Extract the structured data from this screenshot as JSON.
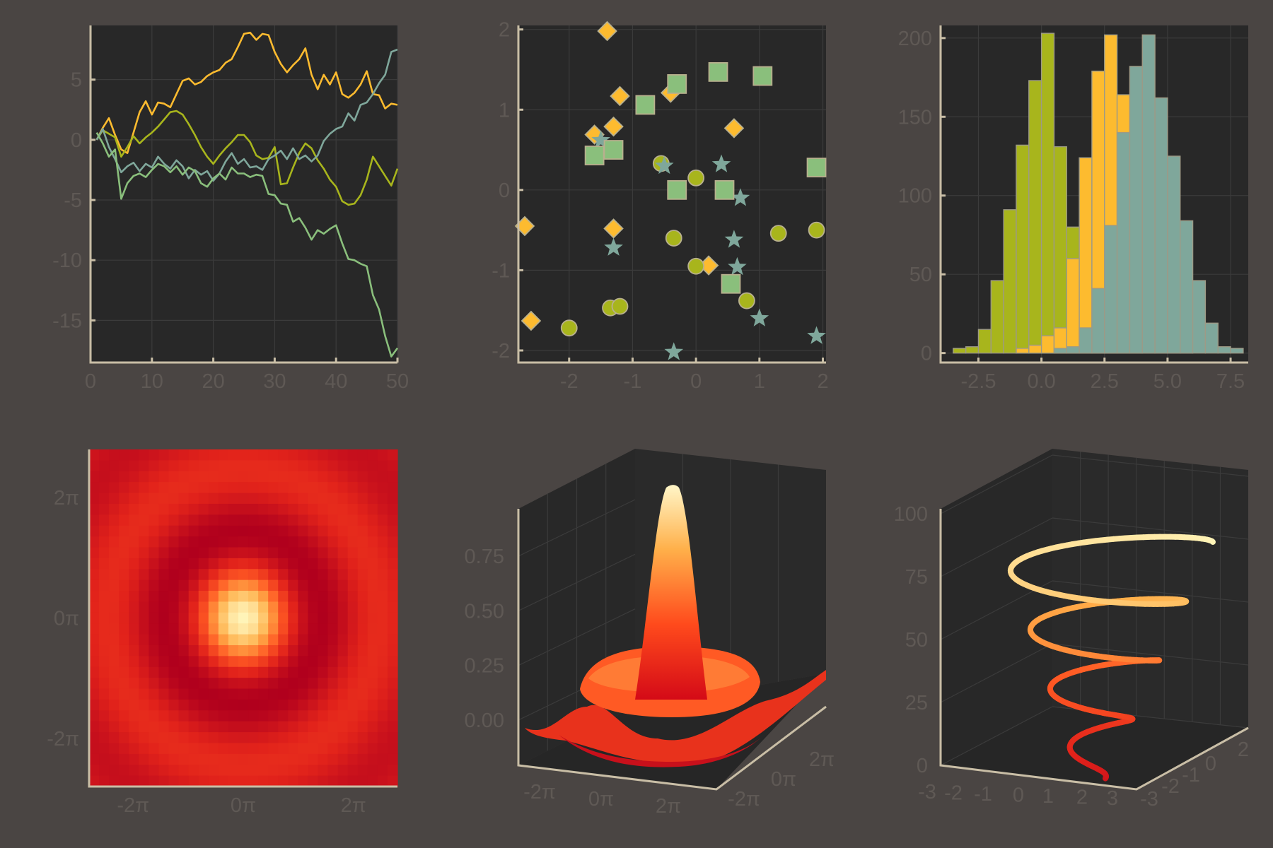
{
  "colors": {
    "background": "#4a4543",
    "plot_area": "#282828",
    "axis": "#c9bea6",
    "tick_text": "#5f5955",
    "palette": [
      "#fdbb2f",
      "#a8b51c",
      "#7fa79b",
      "#8abf7c"
    ],
    "heat": [
      "#b0001d",
      "#e2231b",
      "#ff5a24",
      "#ffb04a",
      "#fff4b8"
    ]
  },
  "chart_data": [
    {
      "id": "lines",
      "type": "line",
      "xlim": [
        0,
        50
      ],
      "ylim": [
        -18.5,
        9.5
      ],
      "x_ticks": [
        {
          "v": 0,
          "label": "0"
        },
        {
          "v": 10,
          "label": "10"
        },
        {
          "v": 20,
          "label": "20"
        },
        {
          "v": 30,
          "label": "30"
        },
        {
          "v": 40,
          "label": "40"
        },
        {
          "v": 50,
          "label": "50"
        }
      ],
      "y_ticks": [
        {
          "v": 5,
          "label": "5"
        },
        {
          "v": 0,
          "label": "0"
        },
        {
          "v": -5,
          "label": "-5"
        },
        {
          "v": -10,
          "label": "-10"
        },
        {
          "v": -15,
          "label": "-15"
        }
      ],
      "x": [
        1,
        2,
        3,
        4,
        5,
        6,
        7,
        8,
        9,
        10,
        11,
        12,
        13,
        14,
        15,
        16,
        17,
        18,
        19,
        20,
        21,
        22,
        23,
        24,
        25,
        26,
        27,
        28,
        29,
        30,
        31,
        32,
        33,
        34,
        35,
        36,
        37,
        38,
        39,
        40,
        41,
        42,
        43,
        44,
        45,
        46,
        47,
        48,
        49,
        50
      ],
      "series": [
        {
          "color": "#fdbb2f",
          "values": [
            0.0,
            1.0,
            1.8,
            0.4,
            -0.8,
            -1.1,
            0.6,
            2.3,
            3.2,
            2.1,
            3.1,
            3.0,
            2.7,
            3.8,
            4.9,
            5.1,
            4.6,
            4.8,
            5.3,
            5.6,
            5.8,
            6.4,
            6.7,
            7.7,
            8.8,
            8.9,
            8.3,
            8.8,
            8.7,
            7.3,
            6.3,
            5.6,
            6.2,
            6.7,
            7.6,
            5.4,
            4.2,
            5.4,
            4.6,
            5.6,
            3.8,
            3.5,
            3.9,
            4.6,
            5.7,
            3.8,
            3.7,
            2.6,
            3.0,
            2.9
          ]
        },
        {
          "color": "#a8b51c",
          "values": [
            0.0,
            0.8,
            0.5,
            0.2,
            -1.4,
            -0.6,
            0.3,
            -0.3,
            0.2,
            0.6,
            1.1,
            1.7,
            2.3,
            2.4,
            2.1,
            1.3,
            0.4,
            -0.6,
            -1.4,
            -2.0,
            -1.3,
            -0.7,
            -0.2,
            0.4,
            0.4,
            -0.2,
            -1.3,
            -1.6,
            -1.5,
            -0.6,
            -3.7,
            -3.6,
            -2.3,
            -1.1,
            -0.3,
            -0.7,
            -1.7,
            -2.4,
            -3.3,
            -3.9,
            -5.1,
            -5.4,
            -5.3,
            -4.6,
            -3.3,
            -1.4,
            -2.2,
            -3.0,
            -3.8,
            -2.4
          ]
        },
        {
          "color": "#7fa79b",
          "values": [
            0.0,
            0.9,
            -0.6,
            -1.6,
            -2.7,
            -2.2,
            -1.9,
            -2.6,
            -2.0,
            -2.3,
            -1.4,
            -2.0,
            -2.4,
            -1.7,
            -2.2,
            -3.2,
            -2.5,
            -2.9,
            -2.6,
            -3.4,
            -2.8,
            -1.8,
            -1.1,
            -2.0,
            -1.6,
            -2.3,
            -2.2,
            -2.5,
            -1.6,
            -1.3,
            -0.9,
            -1.6,
            -0.7,
            -1.6,
            -1.3,
            -1.8,
            -1.3,
            -0.1,
            0.5,
            0.9,
            1.1,
            2.2,
            1.6,
            2.9,
            3.1,
            3.8,
            4.7,
            5.4,
            7.3,
            7.5
          ]
        },
        {
          "color": "#8abf7c",
          "values": [
            0.6,
            -0.3,
            -1.4,
            -0.8,
            -4.9,
            -3.6,
            -3.0,
            -2.8,
            -3.1,
            -2.5,
            -2.0,
            -2.2,
            -2.7,
            -2.2,
            -2.9,
            -2.3,
            -2.6,
            -3.6,
            -3.9,
            -3.2,
            -2.8,
            -3.3,
            -2.3,
            -2.8,
            -2.8,
            -3.1,
            -2.9,
            -3.0,
            -4.5,
            -4.6,
            -5.3,
            -5.4,
            -6.8,
            -6.5,
            -7.3,
            -8.3,
            -7.5,
            -7.8,
            -7.4,
            -7.1,
            -8.6,
            -9.9,
            -10.0,
            -10.3,
            -10.5,
            -12.9,
            -14.1,
            -16.3,
            -18.0,
            -17.3
          ]
        }
      ]
    },
    {
      "id": "scatter",
      "type": "scatter",
      "xlim": [
        -2.8,
        2.05
      ],
      "ylim": [
        -2.15,
        2.05
      ],
      "x_ticks": [
        {
          "v": -2,
          "label": "-2"
        },
        {
          "v": -1,
          "label": "-1"
        },
        {
          "v": 0,
          "label": "0"
        },
        {
          "v": 1,
          "label": "1"
        },
        {
          "v": 2,
          "label": "2"
        }
      ],
      "y_ticks": [
        {
          "v": 2,
          "label": "2"
        },
        {
          "v": 1,
          "label": "1"
        },
        {
          "v": 0,
          "label": "0"
        },
        {
          "v": -1,
          "label": "-1"
        },
        {
          "v": -2,
          "label": "-2"
        }
      ],
      "series": [
        {
          "marker": "diamond",
          "color": "#fdbb2f",
          "points": [
            [
              -1.4,
              1.98
            ],
            [
              -1.2,
              1.17
            ],
            [
              -0.4,
              1.21
            ],
            [
              0.6,
              0.77
            ],
            [
              -1.6,
              0.69
            ],
            [
              -1.3,
              0.79
            ],
            [
              -2.7,
              -0.45
            ],
            [
              -1.3,
              -0.48
            ],
            [
              0.2,
              -0.94
            ],
            [
              -2.6,
              -1.63
            ]
          ]
        },
        {
          "marker": "circle",
          "color": "#a8b51c",
          "points": [
            [
              -0.55,
              0.33
            ],
            [
              0.0,
              0.15
            ],
            [
              -0.35,
              -0.6
            ],
            [
              0.0,
              -0.95
            ],
            [
              1.3,
              -0.54
            ],
            [
              1.9,
              -0.5
            ],
            [
              0.8,
              -1.38
            ],
            [
              -1.35,
              -1.47
            ],
            [
              -1.2,
              -1.45
            ],
            [
              -2.0,
              -1.72
            ]
          ]
        },
        {
          "marker": "star",
          "color": "#7fa79b",
          "points": [
            [
              -1.5,
              0.62
            ],
            [
              -0.5,
              0.3
            ],
            [
              0.4,
              0.32
            ],
            [
              0.7,
              -0.1
            ],
            [
              0.6,
              -0.62
            ],
            [
              0.65,
              -0.96
            ],
            [
              -1.3,
              -0.72
            ],
            [
              1.0,
              -1.6
            ],
            [
              -0.35,
              -2.02
            ],
            [
              1.9,
              -1.82
            ]
          ]
        },
        {
          "marker": "square",
          "color": "#8abf7c",
          "points": [
            [
              -0.8,
              1.06
            ],
            [
              -0.3,
              1.32
            ],
            [
              0.35,
              1.47
            ],
            [
              1.05,
              1.42
            ],
            [
              -1.6,
              0.43
            ],
            [
              -1.3,
              0.5
            ],
            [
              -0.3,
              0.0
            ],
            [
              0.45,
              0.0
            ],
            [
              1.9,
              0.28
            ],
            [
              0.55,
              -1.17
            ]
          ]
        }
      ]
    },
    {
      "id": "histogram",
      "type": "bar",
      "xlim": [
        -4.0,
        8.2
      ],
      "ylim": [
        -6,
        208
      ],
      "x_ticks": [
        {
          "v": -2.5,
          "label": "-2.5"
        },
        {
          "v": 0.0,
          "label": "0.0"
        },
        {
          "v": 2.5,
          "label": "2.5"
        },
        {
          "v": 5.0,
          "label": "5.0"
        },
        {
          "v": 7.5,
          "label": "7.5"
        }
      ],
      "y_ticks": [
        {
          "v": 0,
          "label": "0"
        },
        {
          "v": 50,
          "label": "50"
        },
        {
          "v": 100,
          "label": "100"
        },
        {
          "v": 150,
          "label": "150"
        },
        {
          "v": 200,
          "label": "200"
        }
      ],
      "bin_width": 0.5,
      "series": [
        {
          "color": "#a8b51c",
          "bins": [
            [
              -3.5,
              3
            ],
            [
              -3.0,
              4
            ],
            [
              -2.5,
              15
            ],
            [
              -2.0,
              46
            ],
            [
              -1.5,
              91
            ],
            [
              -1.0,
              132
            ],
            [
              -0.5,
              173
            ],
            [
              0.0,
              203
            ],
            [
              0.5,
              131
            ],
            [
              1.0,
              80
            ],
            [
              1.5,
              58
            ],
            [
              2.0,
              41
            ],
            [
              2.5,
              11
            ],
            [
              3.0,
              5
            ],
            [
              3.5,
              2
            ]
          ]
        },
        {
          "color": "#fdbb2f",
          "bins": [
            [
              -1.0,
              3
            ],
            [
              -0.5,
              5
            ],
            [
              0.0,
              11
            ],
            [
              0.5,
              16
            ],
            [
              1.0,
              60
            ],
            [
              1.5,
              124
            ],
            [
              2.0,
              179
            ],
            [
              2.5,
              202
            ],
            [
              3.0,
              164
            ],
            [
              3.5,
              122
            ],
            [
              4.0,
              62
            ],
            [
              4.5,
              41
            ],
            [
              5.0,
              16
            ],
            [
              5.5,
              5
            ]
          ]
        },
        {
          "color": "#7fa79b",
          "bins": [
            [
              0.5,
              3
            ],
            [
              1.0,
              4
            ],
            [
              1.5,
              16
            ],
            [
              2.0,
              41
            ],
            [
              2.5,
              81
            ],
            [
              3.0,
              140
            ],
            [
              3.5,
              182
            ],
            [
              4.0,
              202
            ],
            [
              4.5,
              162
            ],
            [
              5.0,
              125
            ],
            [
              5.5,
              84
            ],
            [
              6.0,
              46
            ],
            [
              6.5,
              19
            ],
            [
              7.0,
              4
            ],
            [
              7.5,
              3
            ]
          ]
        }
      ]
    },
    {
      "id": "heatmap",
      "type": "heatmap",
      "function": "sinc(r) = sin(r)/r",
      "x_ticks": [
        {
          "v": -2,
          "label": "-2π"
        },
        {
          "v": 0,
          "label": "0π"
        },
        {
          "v": 2,
          "label": "2π"
        }
      ],
      "y_ticks": [
        {
          "v": 2,
          "label": "2π"
        },
        {
          "v": 0,
          "label": "0π"
        },
        {
          "v": -2,
          "label": "-2π"
        }
      ]
    },
    {
      "id": "surface",
      "type": "surface",
      "function": "sinc(r) = sin(r)/r",
      "z_ticks": [
        {
          "v": 0.0,
          "label": "0.00"
        },
        {
          "v": 0.25,
          "label": "0.25"
        },
        {
          "v": 0.5,
          "label": "0.50"
        },
        {
          "v": 0.75,
          "label": "0.75"
        }
      ],
      "x_ticks": [
        {
          "v": -2,
          "label": "-2π"
        },
        {
          "v": 0,
          "label": "0π"
        },
        {
          "v": 2,
          "label": "2π"
        }
      ],
      "y_ticks": [
        {
          "v": -2,
          "label": "-2π"
        },
        {
          "v": 0,
          "label": "0π"
        },
        {
          "v": 2,
          "label": "2π"
        }
      ]
    },
    {
      "id": "helix",
      "type": "line3d",
      "z_ticks": [
        {
          "v": 0,
          "label": "0"
        },
        {
          "v": 25,
          "label": "25"
        },
        {
          "v": 50,
          "label": "50"
        },
        {
          "v": 75,
          "label": "75"
        },
        {
          "v": 100,
          "label": "100"
        }
      ],
      "x_ticks": [
        {
          "v": -3,
          "label": "-3"
        },
        {
          "v": -2,
          "label": "-2"
        },
        {
          "v": -1,
          "label": "-1"
        },
        {
          "v": 0,
          "label": "0"
        },
        {
          "v": 1,
          "label": "1"
        },
        {
          "v": 2,
          "label": "2"
        },
        {
          "v": 3,
          "label": "3"
        }
      ],
      "y_ticks": [
        {
          "v": -3,
          "label": "-3"
        },
        {
          "v": -2,
          "label": "-2"
        },
        {
          "v": -1,
          "label": "-1"
        },
        {
          "v": 0,
          "label": "0"
        },
        {
          "v": 2,
          "label": "2"
        }
      ]
    }
  ]
}
